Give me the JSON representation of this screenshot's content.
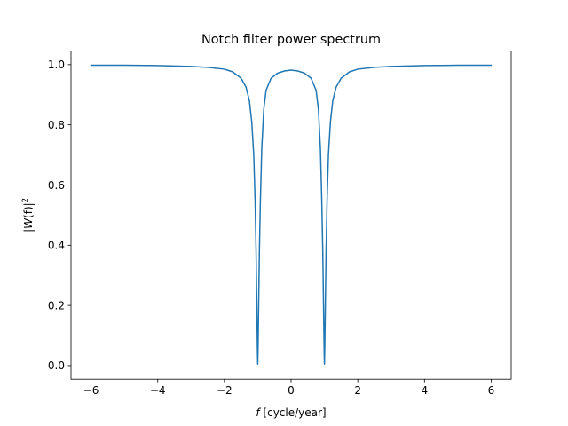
{
  "chart_data": {
    "type": "line",
    "title": "Notch filter power spectrum",
    "xlabel": {
      "var": "f",
      "unit": " [cycle/year]"
    },
    "ylabel": {
      "prefix": "|",
      "var": "W",
      "arg": "(f)",
      "suffix": "|",
      "exp": "2"
    },
    "xlim": [
      -6.6,
      6.6
    ],
    "ylim": [
      -0.045,
      1.045
    ],
    "xticks": [
      -6,
      -4,
      -2,
      0,
      2,
      4,
      6
    ],
    "xtick_labels": [
      "−6",
      "−4",
      "−2",
      "0",
      "2",
      "4",
      "6"
    ],
    "yticks": [
      0.0,
      0.2,
      0.4,
      0.6,
      0.8,
      1.0
    ],
    "ytick_labels": [
      "0.0",
      "0.2",
      "0.4",
      "0.6",
      "0.8",
      "1.0"
    ],
    "grid": false,
    "line_color": "#1f77b4",
    "series": [
      {
        "x": [
          -6,
          -5,
          -4,
          -3,
          -2.5,
          -2,
          -1.75,
          -1.5,
          -1.35,
          -1.25,
          -1.18,
          -1.12,
          -1.08,
          -1.05,
          -1.03,
          -1.01,
          -1.0,
          -0.99,
          -0.97,
          -0.95,
          -0.92,
          -0.88,
          -0.82,
          -0.75,
          -0.6,
          -0.4,
          -0.2,
          0,
          0.2,
          0.4,
          0.6,
          0.75,
          0.82,
          0.88,
          0.92,
          0.95,
          0.97,
          0.99,
          1.0,
          1.01,
          1.03,
          1.05,
          1.08,
          1.12,
          1.18,
          1.25,
          1.35,
          1.5,
          1.75,
          2,
          2.5,
          3,
          4,
          5,
          6
        ],
        "y": [
          0.998,
          0.998,
          0.997,
          0.994,
          0.991,
          0.985,
          0.976,
          0.955,
          0.925,
          0.88,
          0.81,
          0.7,
          0.55,
          0.38,
          0.22,
          0.06,
          0.005,
          0.06,
          0.22,
          0.38,
          0.55,
          0.72,
          0.85,
          0.915,
          0.955,
          0.972,
          0.979,
          0.982,
          0.979,
          0.972,
          0.955,
          0.915,
          0.85,
          0.72,
          0.55,
          0.38,
          0.22,
          0.06,
          0.005,
          0.06,
          0.22,
          0.38,
          0.55,
          0.7,
          0.81,
          0.88,
          0.925,
          0.955,
          0.976,
          0.985,
          0.991,
          0.994,
          0.997,
          0.998,
          0.998
        ]
      }
    ]
  }
}
